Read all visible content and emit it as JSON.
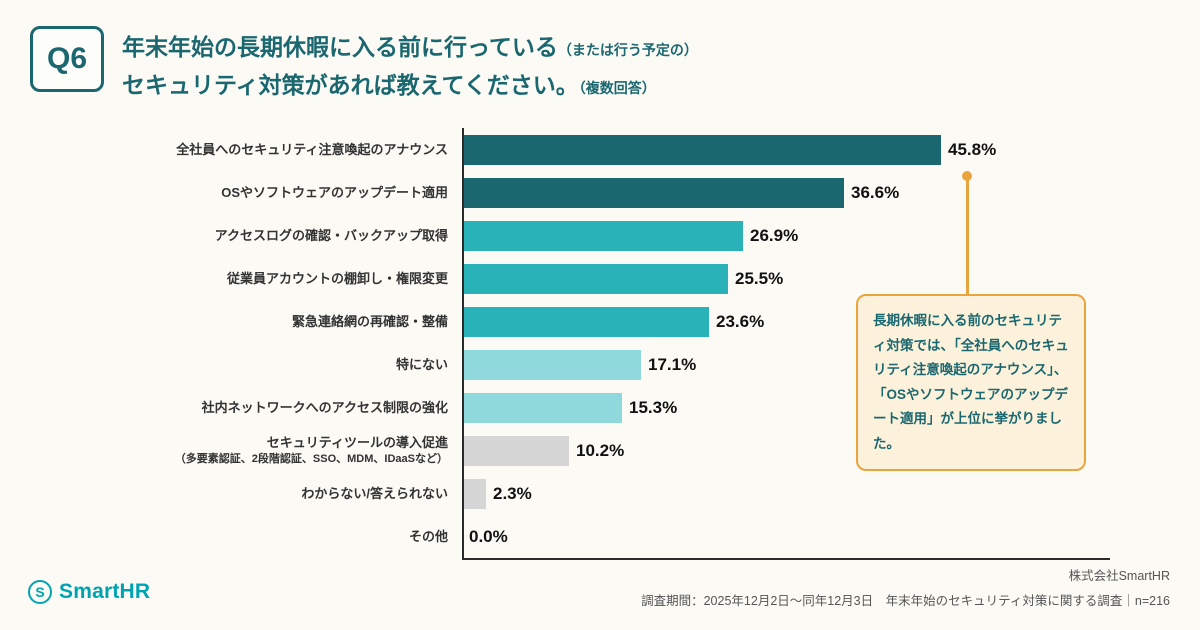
{
  "header": {
    "badge": "Q6",
    "title_line1_main": "年末年始の長期休暇に入る前に行っている",
    "title_line1_sub": "（または行う予定の）",
    "title_line2_main": "セキュリティ対策があれば教えてください。",
    "title_line2_sub": "（複数回答）"
  },
  "chart_data": {
    "type": "bar",
    "orientation": "horizontal",
    "categories": [
      "全社員へのセキュリティ注意喚起のアナウンス",
      "OSやソフトウェアのアップデート適用",
      "アクセスログの確認・バックアップ取得",
      "従業員アカウントの棚卸し・権限変更",
      "緊急連絡網の再確認・整備",
      "特にない",
      "社内ネットワークへのアクセス制限の強化",
      "セキュリティツールの導入促進\n（多要素認証、2段階認証、SSO、MDM、IDaaSなど）",
      "わからない/答えられない",
      "その他"
    ],
    "values": [
      45.8,
      36.6,
      26.9,
      25.5,
      23.6,
      17.1,
      15.3,
      10.2,
      2.3,
      0.0
    ],
    "value_labels": [
      "45.8%",
      "36.6%",
      "26.9%",
      "25.5%",
      "23.6%",
      "17.1%",
      "15.3%",
      "10.2%",
      "2.3%",
      "0.0%"
    ],
    "bar_colors": [
      "#1b6770",
      "#1b6770",
      "#29b2b7",
      "#29b2b7",
      "#29b2b7",
      "#8fd8dc",
      "#8fd8dc",
      "#d6d6d6",
      "#d6d6d6",
      "#d6d6d6"
    ],
    "xlim": [
      0,
      50
    ],
    "grid": false,
    "legend": false,
    "title": ""
  },
  "callout": {
    "text": "長期休暇に入る前のセキュリティ対策では、「全社員へのセキュリティ注意喚起のアナウンス」、「OSやソフトウェアのアップデート適用」が上位に挙がりました。"
  },
  "footer": {
    "logo_text": "SmartHR",
    "logo_mark": "S",
    "company": "株式会社SmartHR",
    "survey_info": "調査期間：2025年12月2日〜同年12月3日　年末年始のセキュリティ対策に関する調査｜n=216"
  },
  "colors": {
    "accent_teal": "#1b6770",
    "bar_dark": "#1b6770",
    "bar_medium": "#29b2b7",
    "bar_light": "#8fd8dc",
    "bar_gray": "#d6d6d6",
    "callout_orange": "#eaa43e",
    "logo_teal": "#00a4b0",
    "background": "#fbfaf5"
  }
}
